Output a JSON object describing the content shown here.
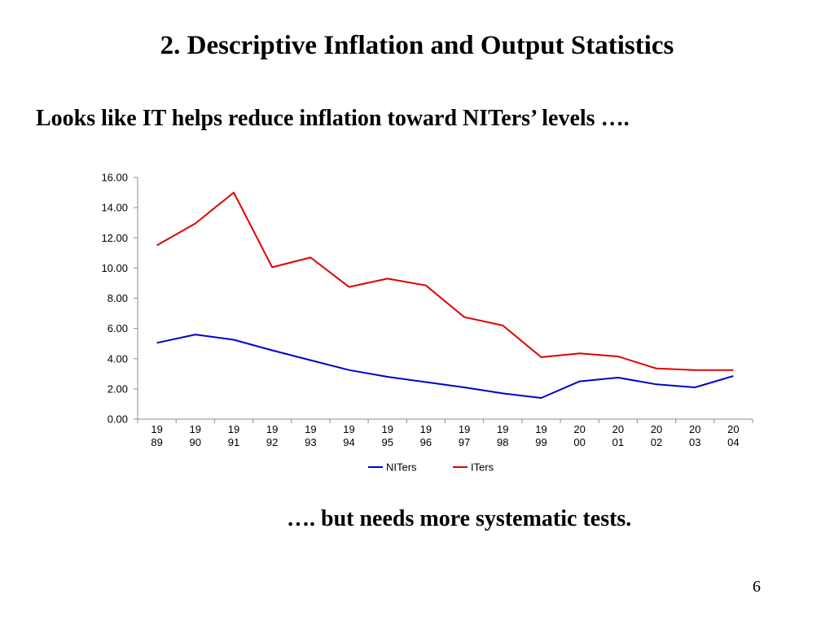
{
  "slide": {
    "title": "2. Descriptive Inflation and Output Statistics",
    "subtitle": "Looks like IT helps reduce inflation toward NITers’ levels  ….",
    "footer_note": "….   but needs more systematic tests.",
    "page_number": "6"
  },
  "chart_data": {
    "type": "line",
    "title": "",
    "xlabel": "",
    "ylabel": "",
    "categories": [
      "1989",
      "1990",
      "1991",
      "1992",
      "1993",
      "1994",
      "1995",
      "1996",
      "1997",
      "1998",
      "1999",
      "2000",
      "2001",
      "2002",
      "2003",
      "2004"
    ],
    "category_tick_labels": [
      [
        "19",
        "89"
      ],
      [
        "19",
        "90"
      ],
      [
        "19",
        "91"
      ],
      [
        "19",
        "92"
      ],
      [
        "19",
        "93"
      ],
      [
        "19",
        "94"
      ],
      [
        "19",
        "95"
      ],
      [
        "19",
        "96"
      ],
      [
        "19",
        "97"
      ],
      [
        "19",
        "98"
      ],
      [
        "19",
        "99"
      ],
      [
        "20",
        "00"
      ],
      [
        "20",
        "01"
      ],
      [
        "20",
        "02"
      ],
      [
        "20",
        "03"
      ],
      [
        "20",
        "04"
      ]
    ],
    "ylim": [
      0,
      16
    ],
    "yticks": [
      0,
      2,
      4,
      6,
      8,
      10,
      12,
      14,
      16
    ],
    "ytick_labels": [
      "0.00",
      "2.00",
      "4.00",
      "6.00",
      "8.00",
      "10.00",
      "12.00",
      "14.00",
      "16.00"
    ],
    "grid": false,
    "legend_position": "bottom",
    "series": [
      {
        "name": "NITers",
        "color": "#0000cc",
        "values": [
          5.05,
          5.6,
          5.25,
          4.55,
          3.9,
          3.25,
          2.8,
          2.45,
          2.1,
          1.7,
          1.4,
          2.5,
          2.75,
          2.3,
          2.1,
          2.85
        ]
      },
      {
        "name": "ITers",
        "color": "#e00000",
        "values": [
          11.5,
          12.95,
          15.0,
          10.05,
          10.7,
          8.75,
          9.3,
          8.85,
          6.75,
          6.2,
          4.1,
          4.35,
          4.15,
          3.35,
          3.25,
          3.25
        ]
      }
    ]
  }
}
